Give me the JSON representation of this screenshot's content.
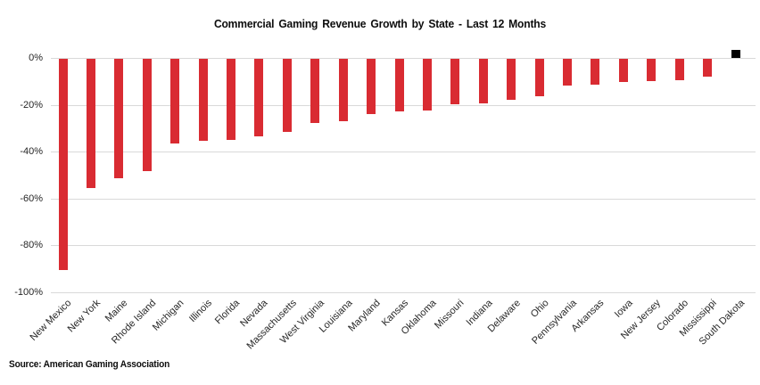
{
  "page": {
    "title": "Commercial Gaming Revenue Growth by State - Last 12 Months",
    "source_note": "Source: American Gaming Association"
  },
  "chart_data": {
    "type": "bar",
    "title": "Commercial Gaming Revenue Growth by State - Last 12 Months",
    "categories": [
      "New Mexico",
      "New York",
      "Maine",
      "Rhode Island",
      "Michigan",
      "Illinois",
      "Florida",
      "Nevada",
      "Massachusetts",
      "West Virginia",
      "Louisiana",
      "Maryland",
      "Kansas",
      "Oklahoma",
      "Missouri",
      "Indiana",
      "Delaware",
      "Ohio",
      "Pennsylvania",
      "Arkansas",
      "Iowa",
      "New Jersey",
      "Colorado",
      "Mississippi",
      "South Dakota"
    ],
    "values": [
      -90,
      -55,
      -51,
      -48,
      -36,
      -35,
      -34.5,
      -33,
      -31,
      -27.5,
      -26.5,
      -23.5,
      -22.5,
      -22,
      -19.5,
      -19,
      -17.5,
      -16,
      -11.5,
      -11,
      -10,
      -9.5,
      -9,
      -7.5,
      3.5
    ],
    "unit": "%",
    "bar_color_negative": "#d92b32",
    "bar_color_positive": "#000000",
    "highlighted_category": "South Dakota",
    "ylim": [
      -100,
      5
    ],
    "yticks": [
      0,
      -20,
      -40,
      -60,
      -80,
      -100
    ],
    "ytick_labels": [
      "0%",
      "-20%",
      "-40%",
      "-60%",
      "-80%",
      "-100%"
    ],
    "xlabel": "",
    "ylabel": "",
    "grid": "horizontal",
    "gridline_color": "#d9d9d9",
    "legend": "none",
    "x_label_rotation_deg": 45,
    "source": "Source: American Gaming Association"
  }
}
